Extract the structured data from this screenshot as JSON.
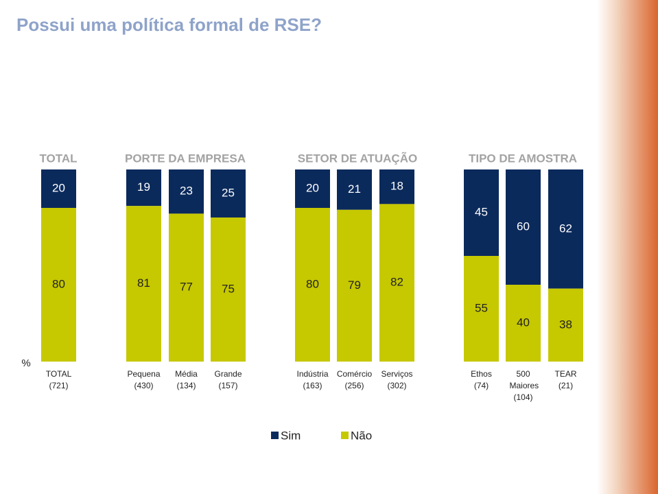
{
  "chart_data": {
    "type": "stacked-bar",
    "title": "Possui uma política formal de RSE?",
    "group_labels": [
      "TOTAL",
      "PORTE DA EMPRESA",
      "SETOR DE ATUAÇÃO",
      "TIPO DE AMOSTRA"
    ],
    "unit": "%",
    "categories": [
      "TOTAL",
      "Pequena",
      "Média",
      "Grande",
      "Indústria",
      "Comércio",
      "Serviços",
      "Ethos",
      "500 Maiores",
      "TEAR"
    ],
    "sample_sizes": [
      "(721)",
      "(430)",
      "(134)",
      "(157)",
      "(163)",
      "(256)",
      "(302)",
      "(74)",
      "(104)",
      "(21)"
    ],
    "series": [
      {
        "name": "Sim",
        "color": "#0b2a5c",
        "values": [
          20,
          19,
          23,
          25,
          20,
          21,
          18,
          45,
          60,
          62
        ]
      },
      {
        "name": "Não",
        "color": "#c6c800",
        "values": [
          80,
          81,
          77,
          75,
          80,
          79,
          82,
          55,
          40,
          38
        ]
      }
    ]
  }
}
